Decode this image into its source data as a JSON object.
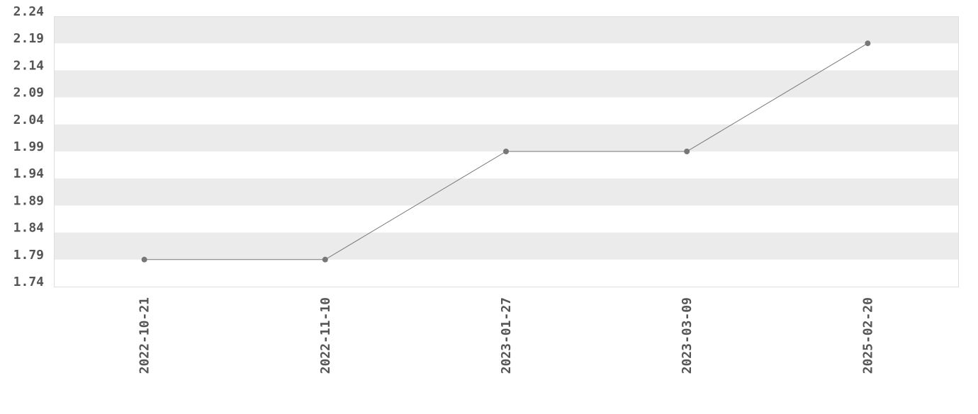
{
  "chart_data": {
    "type": "line",
    "categories": [
      "2022-10-21",
      "2022-11-10",
      "2023-01-27",
      "2023-03-09",
      "2025-02-20"
    ],
    "values": [
      1.79,
      1.79,
      1.99,
      1.99,
      2.19
    ],
    "yticks": [
      "1.74",
      "1.79",
      "1.84",
      "1.89",
      "1.94",
      "1.99",
      "2.04",
      "2.09",
      "2.14",
      "2.19",
      "2.24"
    ],
    "ylim": [
      1.74,
      2.24
    ],
    "title": "",
    "xlabel": "",
    "ylabel": "",
    "grid": "alternating horizontal bands",
    "colors": {
      "band": "#ebebeb",
      "line": "#777777",
      "marker": "#777777",
      "text": "#555555",
      "border": "#dddddd"
    }
  }
}
